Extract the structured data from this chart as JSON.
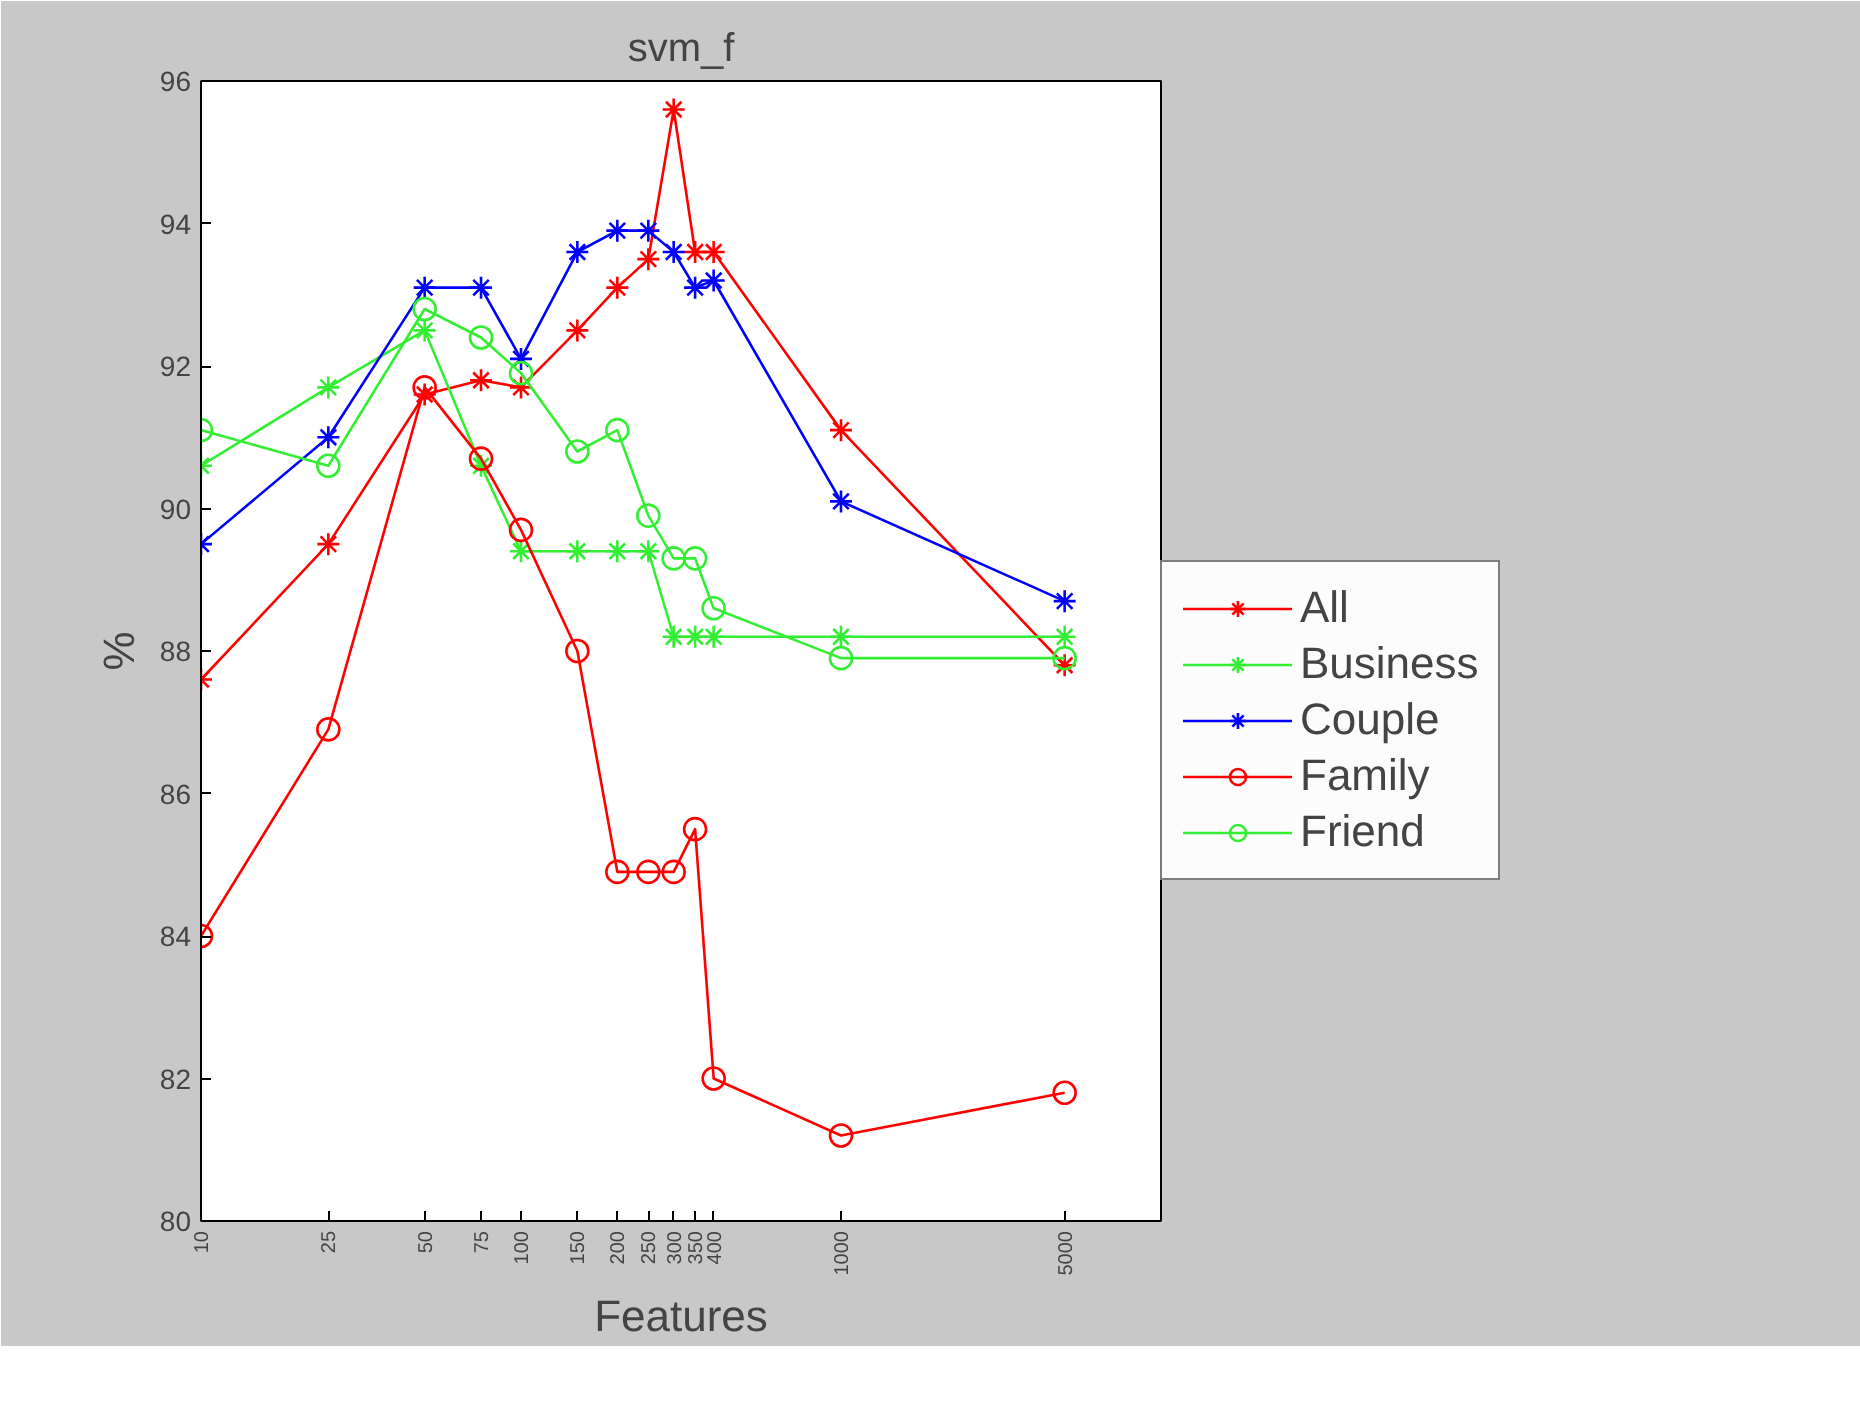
{
  "chart_data": {
    "type": "line",
    "title": "svm_f",
    "xlabel": "Features",
    "ylabel": "%",
    "log": "x",
    "grid": false,
    "legend": "right",
    "line_style": "solid",
    "x": [
      10,
      25,
      50,
      75,
      100,
      150,
      200,
      250,
      300,
      350,
      400,
      1000,
      5000
    ],
    "xlim": [
      10,
      10000
    ],
    "xticks": [
      10,
      25,
      50,
      75,
      100,
      150,
      200,
      250,
      300,
      350,
      400,
      1000,
      5000
    ],
    "ylim": [
      80,
      96
    ],
    "yticks": [
      80,
      82,
      84,
      86,
      88,
      90,
      92,
      94,
      96
    ],
    "series": [
      {
        "name": "All",
        "color": "#ff0000",
        "marker": "cross",
        "values": [
          87.6,
          89.5,
          91.6,
          91.8,
          91.7,
          92.5,
          93.1,
          93.5,
          95.6,
          93.6,
          93.6,
          91.1,
          87.8
        ]
      },
      {
        "name": "Business",
        "color": "#33ee33",
        "marker": "cross",
        "values": [
          90.6,
          91.7,
          92.5,
          90.6,
          89.4,
          89.4,
          89.4,
          89.4,
          88.2,
          88.2,
          88.2,
          88.2,
          88.2
        ]
      },
      {
        "name": "Couple",
        "color": "#0000ff",
        "marker": "cross",
        "values": [
          89.5,
          91.0,
          93.1,
          93.1,
          92.1,
          93.6,
          93.9,
          93.9,
          93.6,
          93.1,
          93.2,
          90.1,
          88.7
        ]
      },
      {
        "name": "Family",
        "color": "#ff0000",
        "marker": "circle",
        "values": [
          84.0,
          86.9,
          91.7,
          90.7,
          89.7,
          88.0,
          84.9,
          84.9,
          84.9,
          85.5,
          82.0,
          81.2,
          81.8
        ]
      },
      {
        "name": "Friend",
        "color": "#33ee33",
        "marker": "circle",
        "values": [
          91.1,
          90.6,
          92.8,
          92.4,
          91.9,
          90.8,
          91.1,
          89.9,
          89.3,
          89.3,
          88.6,
          87.9,
          87.9
        ]
      }
    ]
  }
}
